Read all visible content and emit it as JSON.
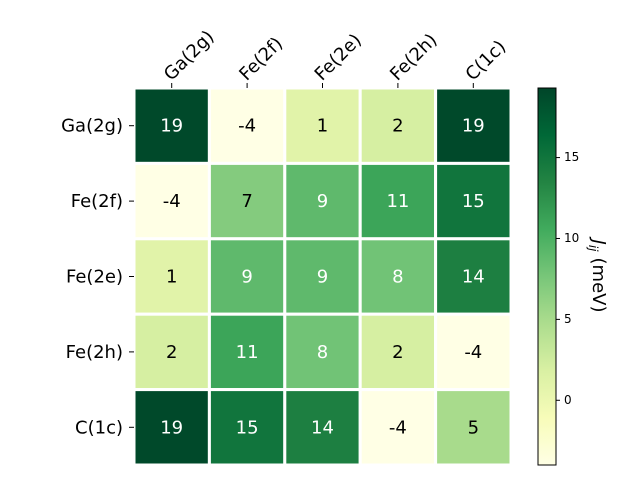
{
  "chart_data": {
    "type": "heatmap",
    "x_categories": [
      "Ga(2g)",
      "Fe(2f)",
      "Fe(2e)",
      "Fe(2h)",
      "C(1c)"
    ],
    "y_categories": [
      "Ga(2g)",
      "Fe(2f)",
      "Fe(2e)",
      "Fe(2h)",
      "C(1c)"
    ],
    "values": [
      [
        19,
        -4,
        1,
        2,
        19
      ],
      [
        -4,
        7,
        9,
        11,
        15
      ],
      [
        1,
        9,
        9,
        8,
        14
      ],
      [
        2,
        11,
        8,
        2,
        -4
      ],
      [
        19,
        15,
        14,
        -4,
        5
      ]
    ],
    "colormap": [
      "#ffffe5",
      "#f7fcb9",
      "#d9f0a3",
      "#addd8e",
      "#78c679",
      "#41ab5d",
      "#238443",
      "#006837",
      "#004529"
    ],
    "colorbar": {
      "label": "J",
      "label_subscript": "ij",
      "label_unit": "(meV)",
      "lim": [
        -4,
        19.3
      ],
      "ticks": [
        0,
        5,
        10,
        15
      ]
    }
  }
}
